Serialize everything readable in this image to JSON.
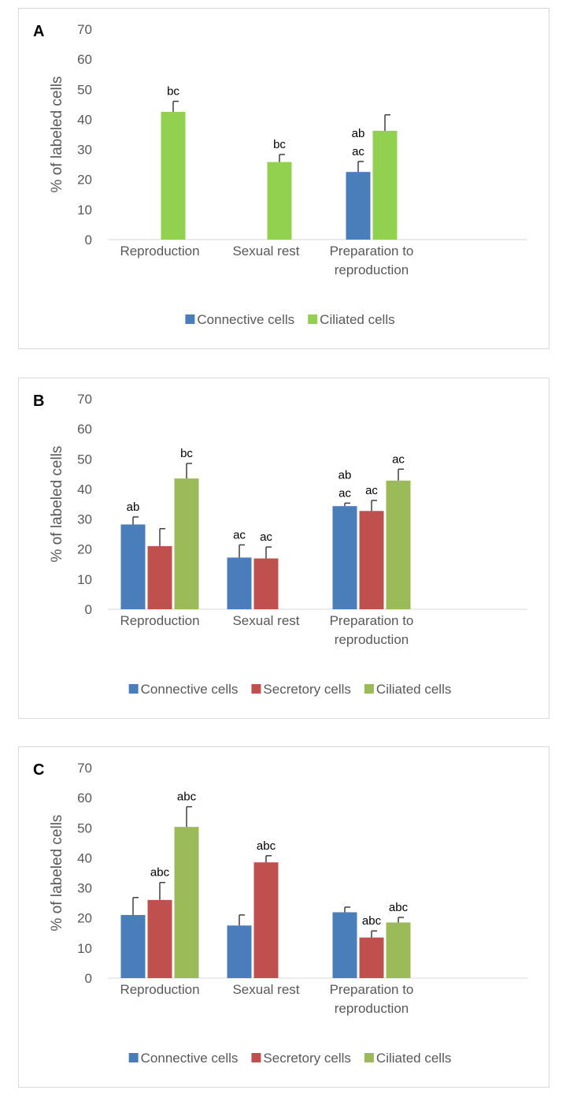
{
  "chart_data": [
    {
      "type": "bar",
      "panel_label": "A",
      "ylabel": "% of labeled cells",
      "ylim": [
        0,
        70
      ],
      "yticks": [
        "0",
        "10",
        "20",
        "30",
        "40",
        "50",
        "60",
        "70"
      ],
      "categories": [
        "Reproduction",
        "Sexual rest",
        "Preparation to reproduction"
      ],
      "category_lines": [
        [
          "Reproduction"
        ],
        [
          "Sexual rest"
        ],
        [
          "Preparation to",
          "reproduction"
        ]
      ],
      "series": [
        {
          "name": "Connective cells",
          "color": "#4a7ebb",
          "values": [
            null,
            null,
            22.5
          ],
          "errors": [
            null,
            null,
            3.5
          ],
          "annotations": [
            "",
            "",
            "ab|ac"
          ]
        },
        {
          "name": "Ciliated cells",
          "color": "#92d050",
          "values": [
            42.5,
            25.8,
            36.2
          ],
          "errors": [
            3.5,
            2.5,
            5.3
          ],
          "annotations": [
            "bc",
            "bc",
            ""
          ]
        }
      ],
      "legend": "bottom"
    },
    {
      "type": "bar",
      "panel_label": "B",
      "ylabel": "% of labeled cells",
      "ylim": [
        0,
        70
      ],
      "yticks": [
        "0",
        "10",
        "20",
        "30",
        "40",
        "50",
        "60",
        "70"
      ],
      "categories": [
        "Reproduction",
        "Sexual rest",
        "Preparation to reproduction"
      ],
      "category_lines": [
        [
          "Reproduction"
        ],
        [
          "Sexual rest"
        ],
        [
          "Preparation to",
          "reproduction"
        ]
      ],
      "series": [
        {
          "name": "Connective cells",
          "color": "#4a7ebb",
          "values": [
            28.2,
            17.2,
            34.3
          ],
          "errors": [
            2.5,
            4.2,
            1.0
          ],
          "annotations": [
            "ab",
            "ac",
            "ab|ac"
          ]
        },
        {
          "name": "Secretory cells",
          "color": "#c0504d",
          "values": [
            21.0,
            16.9,
            32.7
          ],
          "errors": [
            5.8,
            3.8,
            3.5
          ],
          "annotations": [
            "",
            "ac",
            "ac"
          ]
        },
        {
          "name": "Ciliated cells",
          "color": "#9bbb59",
          "values": [
            43.5,
            null,
            42.8
          ],
          "errors": [
            5.0,
            null,
            3.8
          ],
          "annotations": [
            "bc",
            "",
            "ac"
          ]
        }
      ],
      "legend": "bottom"
    },
    {
      "type": "bar",
      "panel_label": "C",
      "ylabel": "% of labeled cells",
      "ylim": [
        0,
        70
      ],
      "yticks": [
        "0",
        "10",
        "20",
        "30",
        "40",
        "50",
        "60",
        "70"
      ],
      "categories": [
        "Reproduction",
        "Sexual rest",
        "Preparation to reproduction"
      ],
      "category_lines": [
        [
          "Reproduction"
        ],
        [
          "Sexual rest"
        ],
        [
          "Preparation to",
          "reproduction"
        ]
      ],
      "series": [
        {
          "name": "Connective cells",
          "color": "#4a7ebb",
          "values": [
            21.0,
            17.5,
            21.9
          ],
          "errors": [
            5.8,
            3.5,
            1.7
          ],
          "annotations": [
            "",
            "",
            ""
          ]
        },
        {
          "name": "Secretory cells",
          "color": "#c0504d",
          "values": [
            26.0,
            38.5,
            13.5
          ],
          "errors": [
            5.8,
            2.2,
            2.2
          ],
          "annotations": [
            "abc",
            "abc",
            "abc"
          ]
        },
        {
          "name": "Ciliated cells",
          "color": "#9bbb59",
          "values": [
            50.3,
            null,
            18.5
          ],
          "errors": [
            6.7,
            null,
            1.7
          ],
          "annotations": [
            "abc",
            "",
            "abc"
          ]
        }
      ],
      "legend": "bottom"
    }
  ]
}
